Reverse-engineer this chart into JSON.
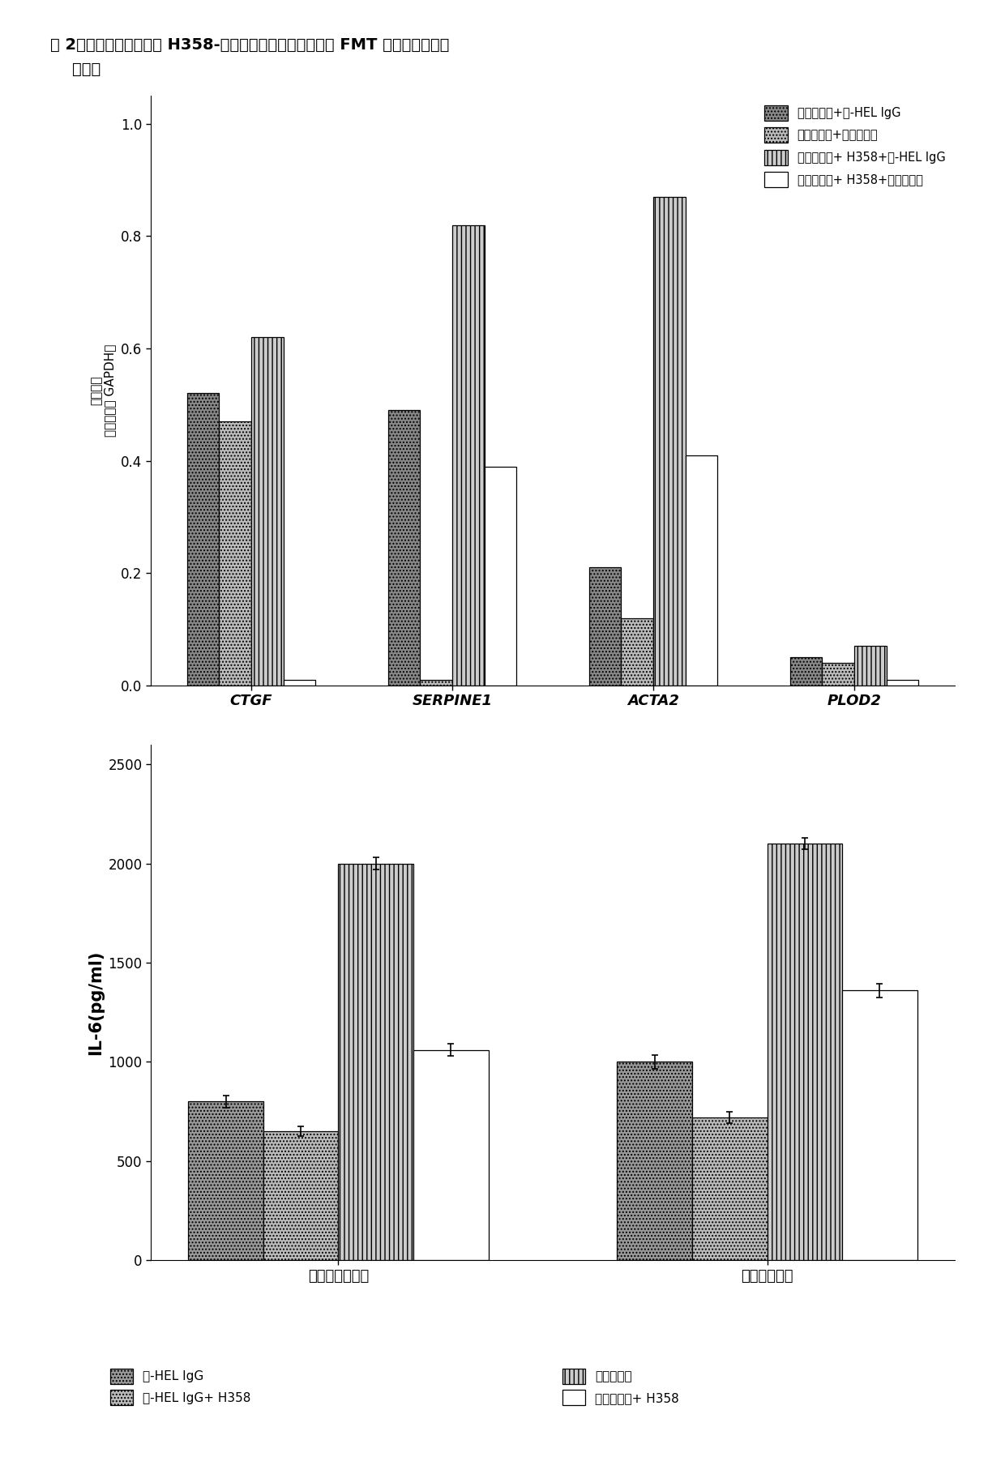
{
  "title_line1": "图 2：阿吐珠单抗阻断在 H358-成纤维细胞共同培养物中的 FMT 相关基因的升高",
  "title_line2": "    的表达",
  "top_chart": {
    "categories": [
      "CTGF",
      "SERPINE1",
      "ACTA2",
      "PLOD2"
    ],
    "series": [
      {
        "label": "成纤维细胞+抗-HEL IgG",
        "values": [
          0.52,
          0.49,
          0.21,
          0.05
        ],
        "facecolor": "#888888",
        "hatch": "....",
        "edgecolor": "black"
      },
      {
        "label": "成纤维细胞+阿吐珠单抗",
        "values": [
          0.47,
          0.01,
          0.12,
          0.04
        ],
        "facecolor": "#bbbbbb",
        "hatch": "....",
        "edgecolor": "black"
      },
      {
        "label": "成纤维细胞+ H358+抗-HEL IgG",
        "values": [
          0.62,
          0.82,
          0.87,
          0.07
        ],
        "facecolor": "#cccccc",
        "hatch": "|||",
        "edgecolor": "black"
      },
      {
        "label": "成纤维细胞+ H358+阿吐珠单抗",
        "values": [
          0.01,
          0.39,
          0.41,
          0.01
        ],
        "facecolor": "#ffffff",
        "hatch": "",
        "edgecolor": "black"
      }
    ],
    "ylabel_line1": "相对表达",
    "ylabel_line2": "（标准化至 GAPDH）",
    "ylim": [
      0.0,
      1.05
    ],
    "yticks": [
      0.0,
      0.2,
      0.4,
      0.6,
      0.8,
      1.0
    ]
  },
  "bottom_chart": {
    "groups": [
      "真皮成纤维细胞",
      "肺成纤维细胞"
    ],
    "series": [
      {
        "label": "抗-HEL IgG",
        "values": [
          800,
          1000
        ],
        "errors": [
          30,
          35
        ],
        "facecolor": "#999999",
        "hatch": "....",
        "edgecolor": "black"
      },
      {
        "label": "抗-HEL IgG+ H358",
        "values": [
          650,
          720
        ],
        "errors": [
          25,
          30
        ],
        "facecolor": "#bbbbbb",
        "hatch": "....",
        "edgecolor": "black"
      },
      {
        "label": "阿吐珠单抗",
        "values": [
          2000,
          2100
        ],
        "errors": [
          30,
          30
        ],
        "facecolor": "#cccccc",
        "hatch": "|||",
        "edgecolor": "black"
      },
      {
        "label": "阿吐珠单抗+ H358",
        "values": [
          1060,
          1360
        ],
        "errors": [
          30,
          35
        ],
        "facecolor": "#ffffff",
        "hatch": "",
        "edgecolor": "black"
      }
    ],
    "ylabel": "IL-6(pg/ml)",
    "ylim": [
      0,
      2600
    ],
    "yticks": [
      0,
      500,
      1000,
      1500,
      2000,
      2500
    ]
  },
  "background_color": "#ffffff"
}
